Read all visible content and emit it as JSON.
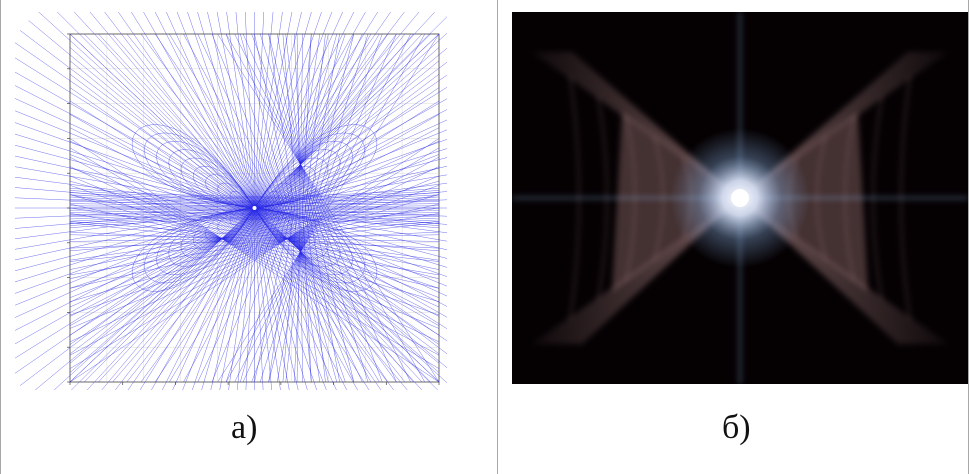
{
  "panels": [
    {
      "caption": "а)",
      "figure": {
        "title": "",
        "line_color": "#2a2ae6",
        "axis_color": "#444444",
        "grid_color": "#cfcfcf"
      }
    },
    {
      "caption": "б)",
      "figure": {
        "background": "#050103",
        "nebula_color": "#c89a9a",
        "core_color": "#ffffff",
        "glow_color": "#8fb6e8"
      }
    }
  ]
}
